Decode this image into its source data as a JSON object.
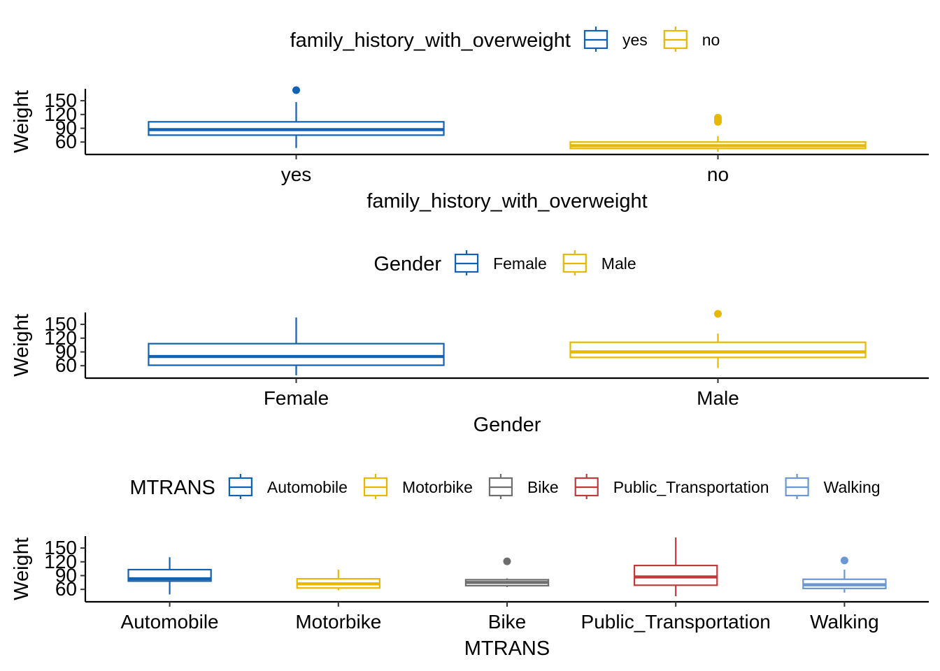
{
  "chart_data": [
    {
      "type": "boxplot",
      "legend": {
        "title": "family_history_with_overweight",
        "position": "top"
      },
      "xlabel": "family_history_with_overweight",
      "ylabel": "Weight",
      "yticks": [
        60,
        90,
        120,
        150
      ],
      "ylim": [
        39,
        176
      ],
      "grid": false,
      "categories": [
        "yes",
        "no"
      ],
      "colors": [
        "#1262B3",
        "#E7B800"
      ],
      "boxes": [
        {
          "category": "yes",
          "whisker_low": 47,
          "q1": 75,
          "median": 87,
          "q3": 104,
          "whisker_high": 147,
          "outliers": [
            173
          ]
        },
        {
          "category": "no",
          "whisker_low": 39,
          "q1": 46,
          "median": 52,
          "q3": 60,
          "whisker_high": 73,
          "outliers": [
            104,
            108,
            113
          ]
        }
      ]
    },
    {
      "type": "boxplot",
      "legend": {
        "title": "Gender",
        "position": "top"
      },
      "xlabel": "Gender",
      "ylabel": "Weight",
      "yticks": [
        60,
        90,
        120,
        150
      ],
      "ylim": [
        39,
        176
      ],
      "grid": false,
      "categories": [
        "Female",
        "Male"
      ],
      "colors": [
        "#1262B3",
        "#E7B800"
      ],
      "boxes": [
        {
          "category": "Female",
          "whisker_low": 39,
          "q1": 61,
          "median": 80,
          "q3": 108,
          "whisker_high": 165
        },
        {
          "category": "Male",
          "whisker_low": 55,
          "q1": 78,
          "median": 90,
          "q3": 111,
          "whisker_high": 130,
          "outliers": [
            173
          ]
        }
      ]
    },
    {
      "type": "boxplot",
      "legend": {
        "title": "MTRANS",
        "position": "top"
      },
      "xlabel": "MTRANS",
      "ylabel": "Weight",
      "yticks": [
        60,
        90,
        120,
        150
      ],
      "ylim": [
        39,
        176
      ],
      "grid": false,
      "categories": [
        "Automobile",
        "Motorbike",
        "Bike",
        "Public_Transportation",
        "Walking"
      ],
      "colors": [
        "#1262B3",
        "#E7B800",
        "#6E6E6E",
        "#C0393B",
        "#6B97D5"
      ],
      "boxes": [
        {
          "category": "Automobile",
          "whisker_low": 49,
          "q1": 78,
          "median": 83,
          "q3": 103,
          "whisker_high": 130
        },
        {
          "category": "Motorbike",
          "whisker_low": 58,
          "q1": 63,
          "median": 72,
          "q3": 83,
          "whisker_high": 103
        },
        {
          "category": "Bike",
          "whisker_low": 65,
          "q1": 68,
          "median": 75,
          "q3": 81,
          "whisker_high": 84,
          "outliers": [
            121
          ]
        },
        {
          "category": "Public_Transportation",
          "whisker_low": 45,
          "q1": 69,
          "median": 87,
          "q3": 112,
          "whisker_high": 173
        },
        {
          "category": "Walking",
          "whisker_low": 53,
          "q1": 62,
          "median": 70,
          "q3": 82,
          "whisker_high": 103,
          "outliers": [
            123
          ]
        }
      ]
    }
  ]
}
